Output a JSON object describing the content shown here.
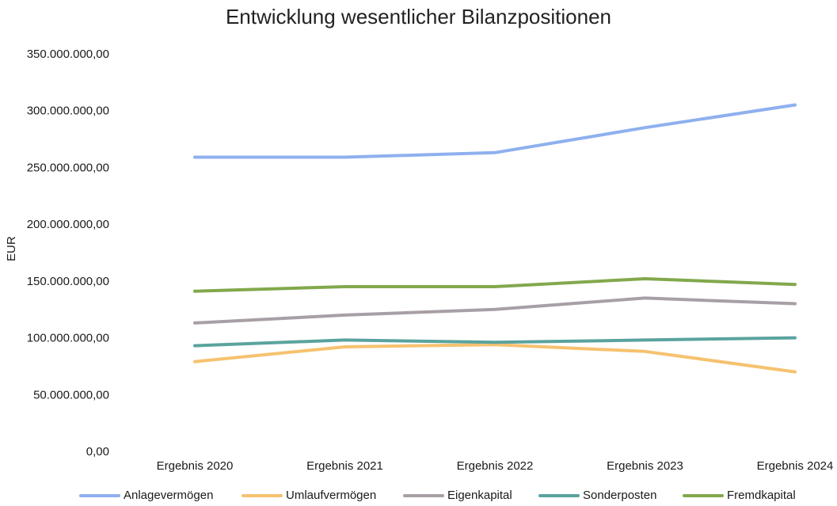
{
  "chart_data": {
    "type": "line",
    "title": "Entwicklung wesentlicher Bilanzpositionen",
    "xlabel": "",
    "ylabel": "EUR",
    "ylim": [
      0,
      350000000
    ],
    "yticks": [
      "0,00",
      "50.000.000,00",
      "100.000.000,00",
      "150.000.000,00",
      "200.000.000,00",
      "250.000.000,00",
      "300.000.000,00",
      "350.000.000,00"
    ],
    "categories": [
      "Ergebnis 2020",
      "Ergebnis 2021",
      "Ergebnis 2022",
      "Ergebnis 2023",
      "Ergebnis 2024"
    ],
    "grid": false,
    "legend_position": "bottom",
    "series": [
      {
        "name": "Anlagevermögen",
        "color": "#8fb0ef",
        "values": [
          259000000,
          259000000,
          263000000,
          285000000,
          305000000
        ]
      },
      {
        "name": "Umlaufvermögen",
        "color": "#f6c26f",
        "values": [
          79000000,
          92000000,
          94000000,
          88000000,
          70000000
        ]
      },
      {
        "name": "Eigenkapital",
        "color": "#a89fa6",
        "values": [
          113000000,
          120000000,
          125000000,
          135000000,
          130000000
        ]
      },
      {
        "name": "Sonderposten",
        "color": "#5aa39e",
        "values": [
          93000000,
          98000000,
          96000000,
          98000000,
          100000000
        ]
      },
      {
        "name": "Fremdkapital",
        "color": "#82a84c",
        "values": [
          141000000,
          145000000,
          145000000,
          152000000,
          147000000
        ]
      }
    ]
  }
}
